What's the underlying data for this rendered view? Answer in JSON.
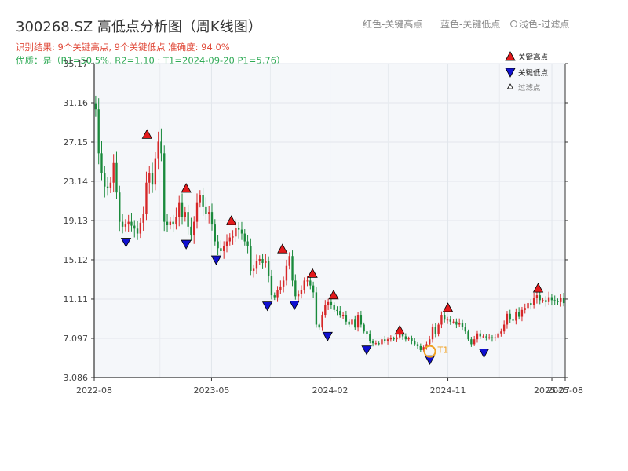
{
  "header": {
    "title": "300268.SZ 高低点分析图（周K线图）",
    "summary": "识别结果: 9个关键高点, 9个关键低点   准确度: 94.0%",
    "quality": "优质：是（R1=50.5%, R2=1.10 ; T1=2024-09-20 P1=5.76）"
  },
  "top_legend": {
    "red": "红色-关键高点",
    "blue": "蓝色-关键低点",
    "gray": "浅色-过滤点"
  },
  "colors": {
    "up": "#d62728",
    "down": "#1a8a3c",
    "high_marker": "#e31a1c",
    "low_marker": "#1010d0",
    "t1_marker": "#f0a020",
    "plot_bg": "#f5f7fa"
  },
  "chart_data": {
    "type": "candlestick",
    "ylim": [
      3.086,
      35.17
    ],
    "yticks": [
      "3.086",
      "7.097",
      "11.11",
      "15.12",
      "19.13",
      "23.14",
      "27.15",
      "31.16",
      "35.17"
    ],
    "xticks": [
      "2022-08",
      "2023-05",
      "2024-02",
      "2024-11",
      "2025-07",
      "2025-08"
    ],
    "legend": [
      "关键高点",
      "关键低点",
      "过滤点"
    ],
    "legend_position": "top-right",
    "grid": true,
    "t1_label": "T1",
    "t1": {
      "date": "2024-09-20",
      "price": 5.76
    },
    "closes": [
      30.5,
      26,
      24,
      22.6,
      22.5,
      23,
      25,
      22,
      19,
      18.5,
      18.8,
      19,
      18.6,
      18.3,
      17.8,
      18.9,
      19.8,
      23,
      24,
      22.8,
      25.5,
      27.2,
      26,
      19,
      18.7,
      19,
      18.8,
      19.5,
      21,
      19.5,
      20,
      18.5,
      17.6,
      19,
      21,
      21.7,
      20.5,
      19.8,
      20,
      18.8,
      17,
      16.3,
      16,
      16.5,
      17,
      17.4,
      17.5,
      18.4,
      18.2,
      17.8,
      17,
      16.5,
      14,
      14.2,
      15,
      15.2,
      14.8,
      15,
      13.5,
      11.5,
      11.3,
      12,
      12.4,
      13,
      14.5,
      15.5,
      13,
      11.4,
      11.6,
      12,
      13,
      13,
      12.5,
      11.8,
      8.5,
      8.2,
      9.5,
      10.5,
      10.8,
      10.5,
      10,
      9.9,
      9.5,
      9.5,
      8.8,
      8.5,
      9,
      8.2,
      9.5,
      8.5,
      7.8,
      7.5,
      6.8,
      6.6,
      6.6,
      6.5,
      7,
      6.8,
      7,
      7.1,
      7,
      7.2,
      7.6,
      7.3,
      7,
      7.1,
      6.8,
      6.5,
      6.3,
      5.9,
      6.2,
      6.5,
      7,
      8.3,
      7.5,
      8.5,
      9.5,
      9,
      9,
      8.8,
      8.8,
      8.5,
      8.7,
      8.3,
      7.8,
      7,
      6.5,
      7,
      7.6,
      7.3,
      7.3,
      7.2,
      7.2,
      7.1,
      7.2,
      7.6,
      7.8,
      8.5,
      9.6,
      9,
      8.9,
      9.8,
      9.3,
      10,
      10.2,
      10.7,
      10.5,
      11.2,
      11.5,
      11,
      11,
      10.8,
      11.3,
      11,
      10.9,
      10.8,
      11.2,
      10.7
    ],
    "key_highs": [
      {
        "date": "2022-12-02",
        "price": 27.2
      },
      {
        "date": "2023-03-03",
        "price": 21.7
      },
      {
        "date": "2023-06-16",
        "price": 18.4
      },
      {
        "date": "2023-10-13",
        "price": 15.5
      },
      {
        "date": "2023-12-22",
        "price": 13.0
      },
      {
        "date": "2024-02-09",
        "price": 10.8
      },
      {
        "date": "2024-07-12",
        "price": 7.2
      },
      {
        "date": "2024-11-01",
        "price": 9.5
      },
      {
        "date": "2025-05-30",
        "price": 11.5
      }
    ],
    "key_lows": [
      {
        "date": "2022-10-14",
        "price": 17.8
      },
      {
        "date": "2023-03-03",
        "price": 17.6
      },
      {
        "date": "2023-05-12",
        "price": 16.0
      },
      {
        "date": "2023-09-08",
        "price": 11.3
      },
      {
        "date": "2023-11-10",
        "price": 11.4
      },
      {
        "date": "2024-01-26",
        "price": 8.2
      },
      {
        "date": "2024-04-26",
        "price": 6.8
      },
      {
        "date": "2024-09-20",
        "price": 5.8
      },
      {
        "date": "2025-01-24",
        "price": 6.5
      }
    ]
  }
}
